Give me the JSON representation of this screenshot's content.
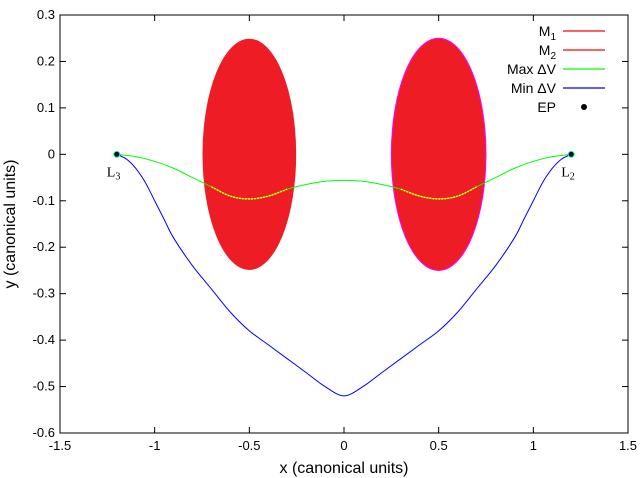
{
  "chart_data": {
    "type": "line",
    "xlabel": "x (canonical units)",
    "ylabel": "y (canonical units)",
    "xlim": [
      -1.5,
      1.5
    ],
    "ylim": [
      -0.6,
      0.3
    ],
    "xticks": [
      -1.5,
      -1,
      -0.5,
      0,
      0.5,
      1,
      1.5
    ],
    "yticks": [
      0.3,
      0.2,
      0.1,
      0,
      -0.1,
      -0.2,
      -0.3,
      -0.4,
      -0.5,
      -0.6
    ],
    "xtick_labels": [
      "-1.5",
      "-1",
      "-0.5",
      "0",
      "0.5",
      "1",
      "1.5"
    ],
    "ytick_labels": [
      "0.3",
      "0.2",
      "0.1",
      "0",
      "-0.1",
      "-0.2",
      "-0.3",
      "-0.4",
      "-0.5",
      "-0.6"
    ],
    "legend_position": "top-right",
    "legend": [
      {
        "label": "M",
        "sub": "1",
        "color": "#ff0000",
        "kind": "line"
      },
      {
        "label": "M",
        "sub": "2",
        "color": "#ff0000",
        "kind": "line"
      },
      {
        "label": "Max ΔV",
        "sub": "",
        "color": "#00ff00",
        "kind": "line"
      },
      {
        "label": "Min ΔV",
        "sub": "",
        "color": "#0000ff",
        "kind": "line"
      },
      {
        "label": "EP",
        "sub": "",
        "color": "#000000",
        "kind": "point"
      }
    ],
    "regions": [
      {
        "name": "M1",
        "cx": -0.5,
        "cy": 0,
        "rx": 0.25,
        "ry": 0.25,
        "fill": "#ee1c25",
        "stroke": "#ffffff"
      },
      {
        "name": "M2",
        "cx": 0.5,
        "cy": 0,
        "rx": 0.25,
        "ry": 0.25,
        "fill": "#ee1c25",
        "stroke": "#ff00ff"
      }
    ],
    "series": [
      {
        "name": "Max ΔV",
        "color": "#00ff00",
        "x": [
          -1.2,
          -1.1,
          -1.0,
          -0.9,
          -0.8,
          -0.7,
          -0.6,
          -0.5,
          -0.4,
          -0.3,
          -0.2,
          -0.1,
          0.0,
          0.1,
          0.2,
          0.3,
          0.4,
          0.5,
          0.6,
          0.7,
          0.8,
          0.9,
          1.0,
          1.1,
          1.2
        ],
        "y": [
          0.0,
          -0.005,
          -0.015,
          -0.03,
          -0.05,
          -0.07,
          -0.09,
          -0.096,
          -0.09,
          -0.075,
          -0.065,
          -0.058,
          -0.056,
          -0.058,
          -0.065,
          -0.075,
          -0.09,
          -0.096,
          -0.09,
          -0.07,
          -0.05,
          -0.03,
          -0.015,
          -0.005,
          0.0
        ]
      },
      {
        "name": "Min ΔV",
        "color": "#0000ff",
        "x": [
          -1.2,
          -1.15,
          -1.1,
          -1.05,
          -1.0,
          -0.95,
          -0.9,
          -0.8,
          -0.7,
          -0.6,
          -0.5,
          -0.4,
          -0.3,
          -0.2,
          -0.1,
          0.0,
          0.1,
          0.2,
          0.3,
          0.4,
          0.5,
          0.6,
          0.7,
          0.8,
          0.9,
          0.95,
          1.0,
          1.05,
          1.1,
          1.15,
          1.2
        ],
        "y": [
          0.0,
          -0.01,
          -0.03,
          -0.06,
          -0.1,
          -0.14,
          -0.18,
          -0.24,
          -0.29,
          -0.34,
          -0.38,
          -0.41,
          -0.44,
          -0.47,
          -0.5,
          -0.52,
          -0.5,
          -0.47,
          -0.44,
          -0.41,
          -0.38,
          -0.34,
          -0.29,
          -0.24,
          -0.18,
          -0.14,
          -0.1,
          -0.06,
          -0.03,
          -0.01,
          0.0
        ]
      }
    ],
    "points": [
      {
        "name": "EP-L3",
        "x": -1.2,
        "y": 0.0,
        "label": "L",
        "sub": "3"
      },
      {
        "name": "EP-L2",
        "x": 1.2,
        "y": 0.0,
        "label": "L",
        "sub": "2"
      }
    ]
  }
}
